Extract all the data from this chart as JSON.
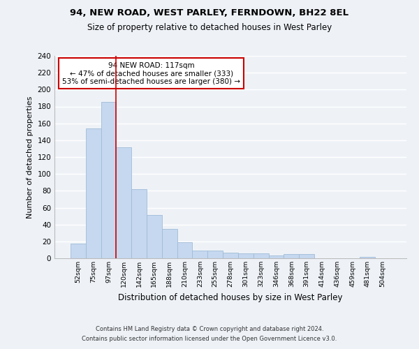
{
  "title1": "94, NEW ROAD, WEST PARLEY, FERNDOWN, BH22 8EL",
  "title2": "Size of property relative to detached houses in West Parley",
  "xlabel": "Distribution of detached houses by size in West Parley",
  "ylabel": "Number of detached properties",
  "categories": [
    "52sqm",
    "75sqm",
    "97sqm",
    "120sqm",
    "142sqm",
    "165sqm",
    "188sqm",
    "210sqm",
    "233sqm",
    "255sqm",
    "278sqm",
    "301sqm",
    "323sqm",
    "346sqm",
    "368sqm",
    "391sqm",
    "414sqm",
    "436sqm",
    "459sqm",
    "481sqm",
    "504sqm"
  ],
  "values": [
    17,
    154,
    185,
    132,
    82,
    51,
    35,
    19,
    9,
    9,
    7,
    6,
    6,
    3,
    5,
    5,
    0,
    0,
    0,
    2,
    0
  ],
  "bar_color": "#c5d8ef",
  "bar_edge_color": "#a0bcd8",
  "vline_x": 3,
  "vline_color": "#cc0000",
  "annotation_text": "94 NEW ROAD: 117sqm\n← 47% of detached houses are smaller (333)\n53% of semi-detached houses are larger (380) →",
  "annotation_box_color": "#ffffff",
  "annotation_box_edge_color": "#cc0000",
  "ylim": [
    0,
    240
  ],
  "yticks": [
    0,
    20,
    40,
    60,
    80,
    100,
    120,
    140,
    160,
    180,
    200,
    220,
    240
  ],
  "background_color": "#eef2f7",
  "grid_color": "#ffffff",
  "footer1": "Contains HM Land Registry data © Crown copyright and database right 2024.",
  "footer2": "Contains public sector information licensed under the Open Government Licence v3.0."
}
